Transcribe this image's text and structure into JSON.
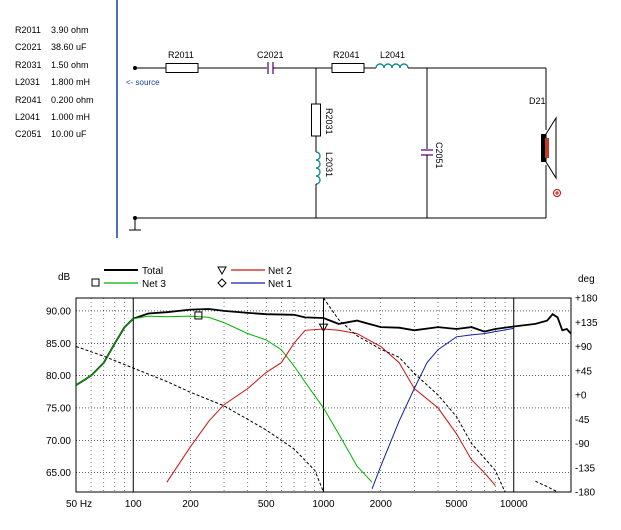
{
  "parts_list": [
    {
      "ref": "R2011",
      "value": "3.90 ohm"
    },
    {
      "ref": "C2021",
      "value": "38.60 uF"
    },
    {
      "ref": "R2031",
      "value": "1.50 ohm"
    },
    {
      "ref": "L2031",
      "value": "1.800 mH"
    },
    {
      "ref": "R2041",
      "value": "0.200 ohm"
    },
    {
      "ref": "L2041",
      "value": "1.000 mH"
    },
    {
      "ref": "C2051",
      "value": "10.00 uF"
    }
  ],
  "schematic": {
    "source_label": "<- source",
    "labels": {
      "r2011": "R2011",
      "c2021": "C2021",
      "r2041": "R2041",
      "l2041": "L2041",
      "r2031": "R2031",
      "l2031": "L2031",
      "c2051": "C2051",
      "driver": "D21"
    },
    "colors": {
      "wire": "#000000",
      "capacitor": "#7a2d8c",
      "inductor": "#1a8a8a",
      "speaker_cone": "#c0392b",
      "polarity": "#cc0000"
    }
  },
  "chart_data": {
    "type": "line",
    "x_scale": "log",
    "xlim": [
      50,
      20000
    ],
    "ylim": [
      62,
      92
    ],
    "y2lim": [
      -180,
      180
    ],
    "ylabel": "dB",
    "y2label": "deg",
    "grid": true,
    "x_ticks": [
      {
        "v": 50,
        "label": "50 Hz"
      },
      {
        "v": 100,
        "label": "100"
      },
      {
        "v": 200,
        "label": "200"
      },
      {
        "v": 500,
        "label": "500"
      },
      {
        "v": 1000,
        "label": "1000"
      },
      {
        "v": 2000,
        "label": "2000"
      },
      {
        "v": 5000,
        "label": "5000"
      },
      {
        "v": 10000,
        "label": "10000"
      }
    ],
    "y_ticks": [
      {
        "v": 90,
        "label": "90.00"
      },
      {
        "v": 85,
        "label": "85.00"
      },
      {
        "v": 80,
        "label": "80.00"
      },
      {
        "v": 75,
        "label": "75.00"
      },
      {
        "v": 70,
        "label": "70.00"
      },
      {
        "v": 65,
        "label": "65.00"
      }
    ],
    "y2_ticks": [
      {
        "v": 180,
        "label": "+180"
      },
      {
        "v": 135,
        "label": "+135"
      },
      {
        "v": 90,
        "label": "+90"
      },
      {
        "v": 45,
        "label": "+45"
      },
      {
        "v": 0,
        "label": "+0"
      },
      {
        "v": -45,
        "label": "-45"
      },
      {
        "v": -90,
        "label": "-90"
      },
      {
        "v": -135,
        "label": "-135"
      },
      {
        "v": -180,
        "label": "-180"
      }
    ],
    "legend": {
      "position": "top-left",
      "items": [
        {
          "name": "Total",
          "color": "#000000",
          "marker": "none"
        },
        {
          "name": "Net 3",
          "color": "#00b000",
          "marker": "square"
        },
        {
          "name": "Net 2",
          "color": "#d01010",
          "marker": "triangle-down"
        },
        {
          "name": "Net 1",
          "color": "#1020a0",
          "marker": "diamond"
        }
      ]
    },
    "series": [
      {
        "name": "Total",
        "color": "#000000",
        "axis": "db",
        "points": [
          [
            50,
            78.5
          ],
          [
            60,
            80
          ],
          [
            70,
            82
          ],
          [
            80,
            85
          ],
          [
            90,
            87.5
          ],
          [
            100,
            88.8
          ],
          [
            120,
            89.6
          ],
          [
            150,
            89.8
          ],
          [
            200,
            90.2
          ],
          [
            250,
            90.3
          ],
          [
            300,
            90
          ],
          [
            400,
            89.7
          ],
          [
            500,
            89.5
          ],
          [
            700,
            89.4
          ],
          [
            800,
            89
          ],
          [
            1000,
            88.9
          ],
          [
            1200,
            88
          ],
          [
            1500,
            88.5
          ],
          [
            2000,
            87.5
          ],
          [
            2500,
            87.4
          ],
          [
            3000,
            87
          ],
          [
            4000,
            87.5
          ],
          [
            5000,
            87.2
          ],
          [
            6000,
            87.5
          ],
          [
            7000,
            86.8
          ],
          [
            8000,
            87.2
          ],
          [
            10000,
            87.6
          ],
          [
            13000,
            88
          ],
          [
            15000,
            88.5
          ],
          [
            16000,
            89.5
          ],
          [
            17000,
            89
          ],
          [
            18000,
            87
          ],
          [
            19000,
            87.2
          ],
          [
            20000,
            86.5
          ]
        ]
      },
      {
        "name": "Net 3",
        "color": "#00b000",
        "axis": "db",
        "points": [
          [
            50,
            78.5
          ],
          [
            60,
            80
          ],
          [
            70,
            82
          ],
          [
            80,
            85
          ],
          [
            90,
            87.5
          ],
          [
            100,
            88.8
          ],
          [
            120,
            89.2
          ],
          [
            150,
            89.1
          ],
          [
            200,
            89.2
          ],
          [
            250,
            89
          ],
          [
            300,
            88.2
          ],
          [
            400,
            86.5
          ],
          [
            500,
            85.5
          ],
          [
            600,
            84
          ],
          [
            700,
            81.5
          ],
          [
            800,
            79
          ],
          [
            1000,
            75
          ],
          [
            1200,
            71
          ],
          [
            1500,
            66
          ],
          [
            1800,
            63.5
          ]
        ]
      },
      {
        "name": "Net 2",
        "color": "#d01010",
        "axis": "db",
        "points": [
          [
            150,
            63.5
          ],
          [
            200,
            69
          ],
          [
            250,
            73
          ],
          [
            300,
            75.5
          ],
          [
            400,
            78
          ],
          [
            500,
            80.5
          ],
          [
            600,
            82
          ],
          [
            700,
            85
          ],
          [
            800,
            87
          ],
          [
            1000,
            87.2
          ],
          [
            1200,
            87
          ],
          [
            1500,
            86.5
          ],
          [
            2000,
            84.5
          ],
          [
            2500,
            82
          ],
          [
            3000,
            78
          ],
          [
            4000,
            75
          ],
          [
            5000,
            71
          ],
          [
            6000,
            67
          ],
          [
            7000,
            65
          ],
          [
            8000,
            63
          ]
        ]
      },
      {
        "name": "Net 1",
        "color": "#1020a0",
        "axis": "db",
        "points": [
          [
            1800,
            62.5
          ],
          [
            2000,
            66
          ],
          [
            2500,
            73
          ],
          [
            3000,
            78
          ],
          [
            3500,
            82
          ],
          [
            4000,
            84
          ],
          [
            5000,
            86
          ],
          [
            6000,
            86.3
          ],
          [
            7000,
            86.5
          ],
          [
            8000,
            86.8
          ],
          [
            10000,
            87.3
          ]
        ]
      },
      {
        "name": "Phase",
        "color": "#000000",
        "dashed": true,
        "axis": "deg",
        "points": [
          [
            50,
            90
          ],
          [
            70,
            72
          ],
          [
            100,
            50
          ],
          [
            150,
            25
          ],
          [
            200,
            5
          ],
          [
            300,
            -20
          ],
          [
            500,
            -65
          ],
          [
            700,
            -100
          ],
          [
            900,
            -140
          ],
          [
            1000,
            -180
          ]
        ]
      },
      {
        "name": "Phase 2",
        "color": "#000000",
        "dashed": true,
        "axis": "deg",
        "points": [
          [
            1000,
            180
          ],
          [
            1200,
            140
          ],
          [
            1500,
            110
          ],
          [
            2000,
            85
          ],
          [
            2500,
            70
          ],
          [
            3000,
            40
          ],
          [
            4000,
            0
          ],
          [
            5000,
            -40
          ],
          [
            6000,
            -90
          ],
          [
            8000,
            -140
          ],
          [
            9000,
            -180
          ]
        ]
      },
      {
        "name": "Phase 3",
        "color": "#000000",
        "dashed": true,
        "axis": "deg",
        "points": [
          [
            13000,
            -160
          ],
          [
            15000,
            -170
          ],
          [
            17000,
            -180
          ]
        ]
      }
    ]
  }
}
